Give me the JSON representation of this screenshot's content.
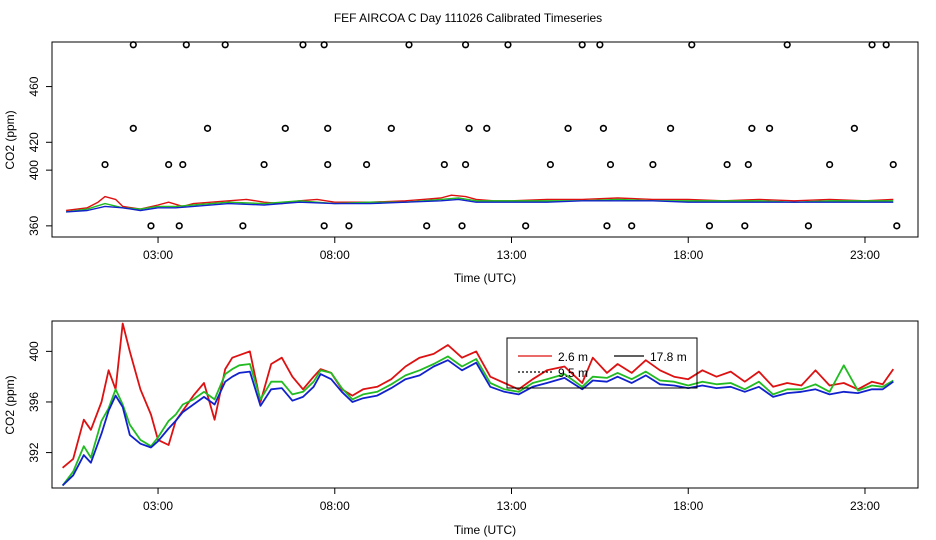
{
  "title": "FEF AIRCOA C  Day 111026  Calibrated Timeseries",
  "colors": {
    "s1": "#dd1111",
    "s2": "#22bb22",
    "s3": "#1122cc",
    "ink": "#000000"
  },
  "chart_data": [
    {
      "type": "line",
      "title": "FEF AIRCOA C  Day 111026  Calibrated Timeseries",
      "xlabel": "Time (UTC)",
      "ylabel": "CO2 (ppm)",
      "xlim": [
        0,
        24.5
      ],
      "ylim": [
        352,
        492
      ],
      "xticks": [
        3,
        8,
        13,
        18,
        23
      ],
      "xtick_labels": [
        "03:00",
        "08:00",
        "13:00",
        "18:00",
        "23:00"
      ],
      "yticks": [
        360,
        400,
        420,
        460
      ],
      "ytick_labels": [
        "360",
        "400",
        "420",
        "460"
      ],
      "series": [
        {
          "name": "red",
          "color": "#dd1111",
          "x": [
            0.4,
            1,
            1.3,
            1.5,
            1.8,
            2,
            2.5,
            3,
            3.3,
            3.7,
            4,
            4.5,
            5,
            5.5,
            6,
            6.5,
            7,
            7.5,
            8,
            9,
            10,
            10.5,
            11,
            11.3,
            11.7,
            12,
            12.5,
            13,
            14,
            15,
            16,
            17,
            18,
            19,
            20,
            21,
            22,
            23,
            23.8
          ],
          "values": [
            371,
            373,
            377,
            381,
            379,
            374,
            372,
            375,
            377,
            374,
            376,
            377,
            378,
            379,
            377,
            376,
            378,
            379,
            377,
            377,
            378,
            379,
            380,
            382,
            381,
            379,
            378,
            378,
            379,
            379,
            380,
            379,
            379,
            378,
            379,
            378,
            379,
            378,
            379
          ]
        },
        {
          "name": "green",
          "color": "#22bb22",
          "x": [
            0.4,
            1,
            1.5,
            2,
            2.5,
            3,
            3.5,
            4,
            5,
            6,
            7,
            8,
            9,
            10,
            11,
            11.5,
            12,
            13,
            14,
            15,
            16,
            17,
            18,
            19,
            20,
            21,
            22,
            23,
            23.8
          ],
          "values": [
            370,
            372,
            376,
            373,
            372,
            374,
            374,
            375,
            377,
            376,
            378,
            376,
            377,
            377,
            379,
            380,
            378,
            378,
            378,
            378,
            379,
            378,
            378,
            378,
            378,
            377,
            378,
            378,
            378
          ]
        },
        {
          "name": "blue",
          "color": "#1122cc",
          "x": [
            0.4,
            1,
            1.5,
            2,
            2.5,
            3,
            3.5,
            4,
            5,
            6,
            7,
            8,
            9,
            10,
            11,
            11.5,
            12,
            13,
            14,
            15,
            16,
            17,
            18,
            19,
            20,
            21,
            22,
            23,
            23.8
          ],
          "values": [
            370,
            371,
            374,
            373,
            371,
            373,
            373,
            374,
            376,
            375,
            377,
            376,
            376,
            377,
            378,
            379,
            377,
            377,
            377,
            378,
            378,
            378,
            377,
            377,
            377,
            377,
            377,
            377,
            377
          ]
        }
      ],
      "calibration_points": {
        "x": [
          2.3,
          3.3,
          3.7,
          3.8,
          3.6,
          1.5,
          2.3,
          2.8,
          4.4,
          4.9,
          5.4,
          6.0,
          6.6,
          7.1,
          7.7,
          7.8,
          7.7,
          7.8,
          8.4,
          8.9,
          9.6,
          10.1,
          10.6,
          11.1,
          11.7,
          11.6,
          11.8,
          11.7,
          12.3,
          12.9,
          13.4,
          14.1,
          14.6,
          15.0,
          15.5,
          15.6,
          15.7,
          15.8,
          16.4,
          17.0,
          17.5,
          18.1,
          18.6,
          19.1,
          19.6,
          19.7,
          19.8,
          20.3,
          20.8,
          21.4,
          22.0,
          22.7,
          23.2,
          23.6,
          23.8,
          23.9
        ],
        "values": [
          490,
          404,
          404,
          490,
          360,
          404,
          430,
          360,
          430,
          490,
          360,
          404,
          430,
          490,
          490,
          430,
          360,
          404,
          360,
          404,
          430,
          490,
          360,
          404,
          490,
          360,
          430,
          404,
          430,
          490,
          360,
          404,
          430,
          490,
          490,
          430,
          360,
          404,
          360,
          404,
          430,
          490,
          360,
          404,
          360,
          404,
          430,
          430,
          490,
          360,
          404,
          430,
          490,
          490,
          404,
          360
        ]
      }
    },
    {
      "type": "line",
      "title": "",
      "xlabel": "Time (UTC)",
      "ylabel": "CO2 (ppm)",
      "xlim": [
        0,
        24.5
      ],
      "ylim": [
        389.2,
        402.4
      ],
      "xticks": [
        3,
        8,
        13,
        18,
        23
      ],
      "xtick_labels": [
        "03:00",
        "08:00",
        "13:00",
        "18:00",
        "23:00"
      ],
      "yticks": [
        392,
        396,
        400
      ],
      "ytick_labels": [
        "392",
        "396",
        "400"
      ],
      "legend": {
        "position": "top-center"
      },
      "series": [
        {
          "name": "2.6 m",
          "color": "#dd1111",
          "x": [
            0.3,
            0.6,
            0.9,
            1.1,
            1.4,
            1.6,
            1.8,
            2.0,
            2.2,
            2.5,
            2.8,
            3.0,
            3.3,
            3.5,
            3.7,
            4.0,
            4.3,
            4.6,
            4.9,
            5.1,
            5.3,
            5.6,
            5.9,
            6.2,
            6.5,
            6.8,
            7.1,
            7.4,
            7.6,
            7.9,
            8.2,
            8.5,
            8.8,
            9.2,
            9.6,
            10.0,
            10.4,
            10.8,
            11.2,
            11.6,
            12.0,
            12.4,
            12.8,
            13.2,
            13.6,
            14.0,
            14.5,
            15.0,
            15.3,
            15.7,
            16.0,
            16.4,
            16.8,
            17.2,
            17.6,
            18.0,
            18.4,
            18.8,
            19.2,
            19.6,
            20.0,
            20.4,
            20.8,
            21.2,
            21.6,
            22.0,
            22.4,
            22.8,
            23.2,
            23.5,
            23.8
          ],
          "values": [
            390.8,
            391.5,
            394.6,
            393.8,
            396.0,
            398.5,
            397.0,
            402.2,
            400.0,
            397.0,
            395.0,
            393.0,
            392.6,
            394.5,
            395.3,
            396.5,
            397.5,
            394.6,
            398.6,
            399.5,
            399.7,
            400.0,
            396.0,
            399.0,
            399.5,
            398.0,
            397.0,
            398.0,
            398.6,
            398.3,
            397.0,
            396.5,
            397.0,
            397.2,
            397.8,
            398.8,
            399.5,
            399.8,
            400.5,
            399.5,
            400.0,
            398.0,
            397.5,
            397.0,
            397.8,
            398.5,
            398.8,
            397.5,
            399.5,
            398.3,
            399.0,
            398.3,
            399.3,
            398.5,
            398.0,
            397.8,
            398.5,
            398.0,
            398.4,
            397.6,
            398.4,
            397.2,
            397.5,
            397.3,
            398.5,
            397.3,
            397.5,
            397.0,
            397.6,
            397.4,
            398.6
          ]
        },
        {
          "name": "17.8 m",
          "color": "#22bb22",
          "x": [
            0.3,
            0.6,
            0.9,
            1.1,
            1.4,
            1.6,
            1.8,
            2.0,
            2.2,
            2.5,
            2.8,
            3.0,
            3.3,
            3.5,
            3.7,
            4.0,
            4.3,
            4.6,
            4.9,
            5.1,
            5.3,
            5.6,
            5.9,
            6.2,
            6.5,
            6.8,
            7.1,
            7.4,
            7.6,
            7.9,
            8.2,
            8.5,
            8.8,
            9.2,
            9.6,
            10.0,
            10.4,
            10.8,
            11.2,
            11.6,
            12.0,
            12.4,
            12.8,
            13.2,
            13.6,
            14.0,
            14.5,
            15.0,
            15.3,
            15.7,
            16.0,
            16.4,
            16.8,
            17.2,
            17.6,
            18.0,
            18.4,
            18.8,
            19.2,
            19.6,
            20.0,
            20.4,
            20.8,
            21.2,
            21.6,
            22.0,
            22.4,
            22.8,
            23.2,
            23.5,
            23.8
          ],
          "values": [
            389.4,
            390.5,
            392.5,
            391.6,
            394.5,
            395.5,
            397.0,
            395.8,
            394.2,
            393.0,
            392.5,
            393.2,
            394.5,
            395.0,
            395.8,
            396.2,
            396.8,
            396.2,
            398.2,
            398.6,
            398.9,
            399.0,
            396.2,
            397.6,
            397.6,
            396.6,
            396.8,
            397.6,
            398.5,
            398.3,
            397.1,
            396.2,
            396.6,
            396.8,
            397.4,
            398.1,
            398.5,
            399.0,
            399.6,
            398.8,
            399.4,
            397.5,
            397.0,
            396.8,
            397.5,
            397.8,
            398.2,
            397.2,
            398.0,
            397.9,
            398.3,
            397.8,
            398.4,
            397.7,
            397.6,
            397.3,
            397.6,
            397.4,
            397.5,
            397.0,
            397.6,
            396.6,
            397.0,
            397.0,
            397.4,
            396.8,
            398.9,
            396.9,
            397.3,
            397.2,
            397.7
          ]
        },
        {
          "name": "9.5 m",
          "color": "#1122cc",
          "x": [
            0.3,
            0.6,
            0.9,
            1.1,
            1.4,
            1.6,
            1.8,
            2.0,
            2.2,
            2.5,
            2.8,
            3.0,
            3.3,
            3.5,
            3.7,
            4.0,
            4.3,
            4.6,
            4.9,
            5.1,
            5.3,
            5.6,
            5.9,
            6.2,
            6.5,
            6.8,
            7.1,
            7.4,
            7.6,
            7.9,
            8.2,
            8.5,
            8.8,
            9.2,
            9.6,
            10.0,
            10.4,
            10.8,
            11.2,
            11.6,
            12.0,
            12.4,
            12.8,
            13.2,
            13.6,
            14.0,
            14.5,
            15.0,
            15.3,
            15.7,
            16.0,
            16.4,
            16.8,
            17.2,
            17.6,
            18.0,
            18.4,
            18.8,
            19.2,
            19.6,
            20.0,
            20.4,
            20.8,
            21.2,
            21.6,
            22.0,
            22.4,
            22.8,
            23.2,
            23.5,
            23.8
          ],
          "values": [
            389.4,
            390.2,
            391.8,
            391.2,
            393.5,
            395.3,
            396.5,
            395.6,
            393.4,
            392.7,
            392.4,
            392.9,
            393.9,
            394.5,
            395.2,
            395.8,
            396.4,
            395.8,
            397.6,
            398.0,
            398.3,
            398.4,
            395.7,
            397.0,
            397.1,
            396.1,
            396.4,
            397.2,
            398.2,
            397.8,
            396.8,
            396.0,
            396.3,
            396.5,
            397.1,
            397.8,
            398.1,
            398.8,
            399.3,
            398.5,
            399.1,
            397.2,
            396.8,
            396.6,
            397.2,
            397.5,
            397.9,
            397.0,
            397.7,
            397.6,
            398.0,
            397.5,
            398.1,
            397.4,
            397.3,
            397.1,
            397.3,
            397.1,
            397.2,
            396.8,
            397.2,
            396.4,
            396.7,
            396.8,
            397.0,
            396.6,
            396.8,
            396.7,
            397.0,
            397.0,
            397.6
          ]
        }
      ]
    }
  ]
}
